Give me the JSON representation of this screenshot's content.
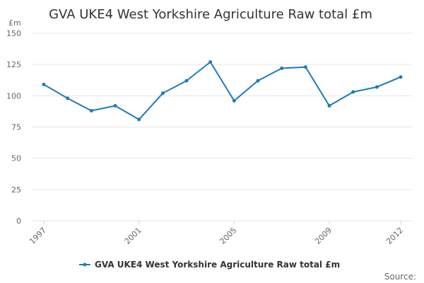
{
  "chart_data": {
    "type": "line",
    "title": "GVA UKE4 West Yorkshire Agriculture Raw total £m",
    "ylabel": "£m",
    "xlabel": "",
    "x": [
      1997,
      1998,
      1999,
      2000,
      2001,
      2002,
      2003,
      2004,
      2005,
      2006,
      2007,
      2008,
      2009,
      2010,
      2011,
      2012
    ],
    "x_tick_labels": [
      "1997",
      "2001",
      "2005",
      "2009",
      "2012"
    ],
    "ylim": [
      0,
      150
    ],
    "y_ticks": [
      "0",
      "25",
      "50",
      "75",
      "100",
      "125",
      "150"
    ],
    "grid": true,
    "legend_position": "bottom-center",
    "series": [
      {
        "name": "GVA UKE4 West Yorkshire Agriculture Raw total £m",
        "color": "#1f7ab8",
        "values": [
          109,
          98,
          88,
          92,
          81,
          102,
          112,
          127,
          96,
          112,
          122,
          123,
          92,
          103,
          107,
          115
        ]
      }
    ]
  },
  "credits": "Source:"
}
